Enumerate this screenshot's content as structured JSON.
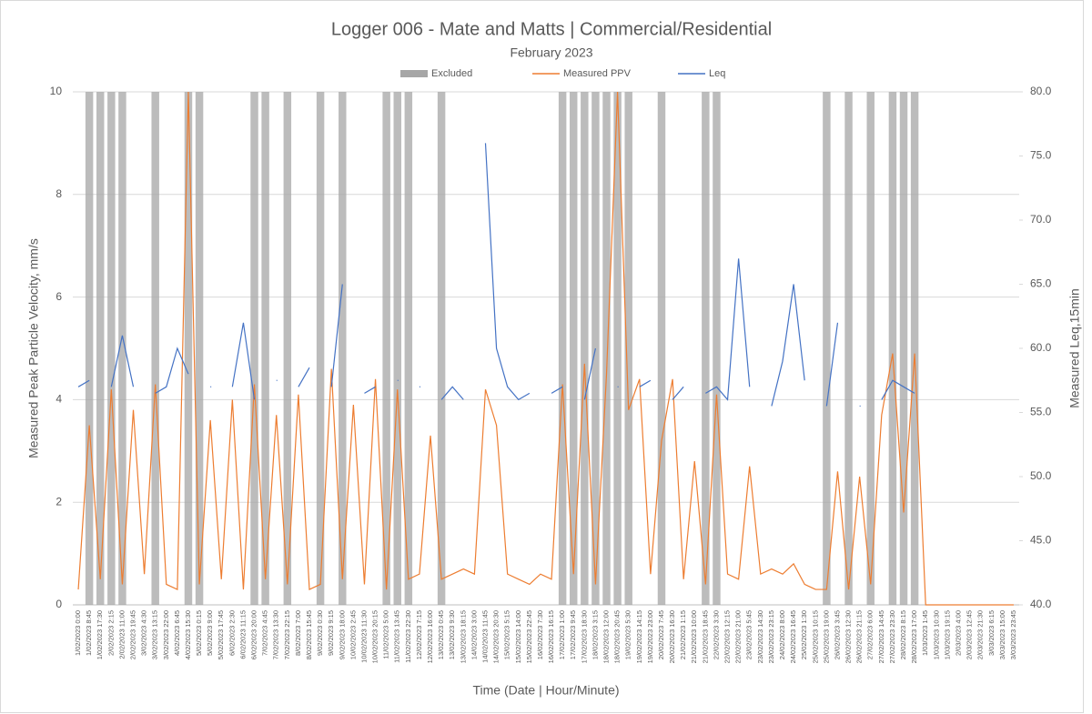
{
  "chart_data": {
    "type": "line",
    "title": "Logger 006 - Mate and Matts | Commercial/Residential",
    "subtitle": "February 2023",
    "xlabel": "Time (Date | Hour/Minute)",
    "ylabel": "Measured Peak Particle Velocity, mm/s",
    "y2label": "Measured Leq,15min",
    "categories": [
      "1/02/2023 0:00",
      "1/02/2023 8:45",
      "1/02/2023 17:30",
      "2/02/2023 2:15",
      "2/02/2023 11:00",
      "2/02/2023 19:45",
      "3/02/2023 4:30",
      "3/02/2023 13:15",
      "3/02/2023 22:00",
      "4/02/2023 6:45",
      "4/02/2023 15:30",
      "5/02/2023 0:15",
      "5/02/2023 9:00",
      "5/02/2023 17:45",
      "6/02/2023 2:30",
      "6/02/2023 11:15",
      "6/02/2023 20:00",
      "7/02/2023 4:45",
      "7/02/2023 13:30",
      "7/02/2023 22:15",
      "8/02/2023 7:00",
      "8/02/2023 15:45",
      "9/02/2023 0:30",
      "9/02/2023 9:15",
      "9/02/2023 18:00",
      "10/02/2023 2:45",
      "10/02/2023 11:30",
      "10/02/2023 20:15",
      "11/02/2023 5:00",
      "11/02/2023 13:45",
      "11/02/2023 22:30",
      "12/02/2023 7:15",
      "12/02/2023 16:00",
      "13/02/2023 0:45",
      "13/02/2023 9:30",
      "13/02/2023 18:15",
      "14/02/2023 3:00",
      "14/02/2023 11:45",
      "14/02/2023 20:30",
      "15/02/2023 5:15",
      "15/02/2023 14:00",
      "15/02/2023 22:45",
      "16/02/2023 7:30",
      "16/02/2023 16:15",
      "17/02/2023 1:00",
      "17/02/2023 9:45",
      "17/02/2023 18:30",
      "18/02/2023 3:15",
      "18/02/2023 12:00",
      "18/02/2023 20:45",
      "19/02/2023 5:30",
      "19/02/2023 14:15",
      "19/02/2023 23:00",
      "20/02/2023 7:45",
      "20/02/2023 16:30",
      "21/02/2023 1:15",
      "21/02/2023 10:00",
      "21/02/2023 18:45",
      "22/02/2023 3:30",
      "22/02/2023 12:15",
      "22/02/2023 21:00",
      "23/02/2023 5:45",
      "23/02/2023 14:30",
      "23/02/2023 23:15",
      "24/02/2023 8:00",
      "24/02/2023 16:45",
      "25/02/2023 1:30",
      "25/02/2023 10:15",
      "25/02/2023 19:00",
      "26/02/2023 3:45",
      "26/02/2023 12:30",
      "26/02/2023 21:15",
      "27/02/2023 6:00",
      "27/02/2023 14:45",
      "27/02/2023 23:30",
      "28/02/2023 8:15",
      "28/02/2023 17:00",
      "1/03/2023 1:45",
      "1/03/2023 10:30",
      "1/03/2023 19:15",
      "2/03/2023 4:00",
      "2/03/2023 12:45",
      "2/03/2023 21:30",
      "3/03/2023 6:15",
      "3/03/2023 15:00",
      "3/03/2023 23:45"
    ],
    "series": [
      {
        "name": "Excluded",
        "type": "bar",
        "color": "#a6a6a6",
        "values": [
          null,
          10,
          10,
          10,
          10,
          null,
          null,
          10,
          null,
          null,
          10,
          10,
          null,
          null,
          null,
          null,
          10,
          10,
          null,
          10,
          null,
          null,
          10,
          null,
          10,
          null,
          null,
          null,
          10,
          10,
          10,
          null,
          null,
          10,
          null,
          null,
          null,
          null,
          null,
          null,
          null,
          null,
          null,
          null,
          10,
          10,
          10,
          10,
          10,
          10,
          10,
          null,
          null,
          10,
          null,
          null,
          null,
          10,
          10,
          null,
          null,
          null,
          null,
          null,
          null,
          null,
          null,
          null,
          10,
          null,
          10,
          null,
          10,
          null,
          10,
          10,
          10,
          null,
          null,
          null,
          null,
          null,
          null,
          null,
          null,
          null
        ]
      },
      {
        "name": "Measured PPV",
        "type": "line",
        "color": "#ed7d31",
        "values": [
          0.3,
          3.5,
          0.5,
          4.2,
          0.4,
          3.8,
          0.6,
          4.3,
          0.4,
          0.3,
          10,
          0.4,
          3.6,
          0.5,
          4.0,
          0.3,
          4.3,
          0.5,
          3.7,
          0.4,
          4.1,
          0.3,
          0.4,
          4.6,
          0.5,
          3.9,
          0.4,
          4.4,
          0.3,
          4.2,
          0.5,
          0.6,
          3.3,
          0.5,
          0.6,
          0.7,
          0.6,
          4.2,
          3.5,
          0.6,
          0.5,
          0.4,
          0.6,
          0.5,
          4.3,
          0.6,
          4.7,
          0.4,
          4.5,
          10,
          3.8,
          4.4,
          0.6,
          3.2,
          4.4,
          0.5,
          2.8,
          0.4,
          4.1,
          0.6,
          0.5,
          2.7,
          0.6,
          0.7,
          0.6,
          0.8,
          0.4,
          0.3,
          0.3,
          2.6,
          0.3,
          2.5,
          0.4,
          3.7,
          4.9,
          1.8,
          4.9,
          0,
          0,
          0,
          0,
          0,
          0,
          0,
          0,
          0
        ]
      },
      {
        "name": "Leq",
        "type": "line",
        "axis": "y2",
        "color": "#4472c4",
        "values": [
          57,
          57.5,
          null,
          57,
          61,
          57,
          null,
          56.5,
          57,
          60,
          58,
          null,
          57,
          null,
          57,
          62,
          56,
          null,
          57.5,
          null,
          57,
          58.5,
          null,
          57,
          65,
          null,
          56.5,
          57,
          null,
          57.5,
          null,
          57,
          null,
          56,
          57,
          56,
          null,
          76,
          60,
          57,
          56,
          56.5,
          null,
          56.5,
          57,
          null,
          56,
          60,
          null,
          57,
          null,
          57,
          57.5,
          null,
          56,
          57,
          null,
          56.5,
          57,
          56,
          67,
          57,
          null,
          55.5,
          59,
          65,
          57.5,
          null,
          55.5,
          62,
          null,
          55.5,
          null,
          56,
          57.5,
          57,
          56.5,
          null,
          null,
          null,
          null,
          null,
          null,
          null,
          null,
          null
        ]
      }
    ],
    "ylim": [
      0,
      10
    ],
    "yticks": [
      0,
      2,
      4,
      6,
      8,
      10
    ],
    "y2lim": [
      40,
      80
    ],
    "y2ticks": [
      {
        "value": 40,
        "label": "40.0"
      },
      {
        "value": 45,
        "label": "45.0"
      },
      {
        "value": 50,
        "label": "50.0"
      },
      {
        "value": 55,
        "label": "55.0"
      },
      {
        "value": 60,
        "label": "60.0"
      },
      {
        "value": 65,
        "label": "65.0"
      },
      {
        "value": 70,
        "label": "70.0"
      },
      {
        "value": 75,
        "label": "75.0"
      },
      {
        "value": 80,
        "label": "80.0"
      }
    ],
    "grid": true,
    "legend": "top"
  }
}
